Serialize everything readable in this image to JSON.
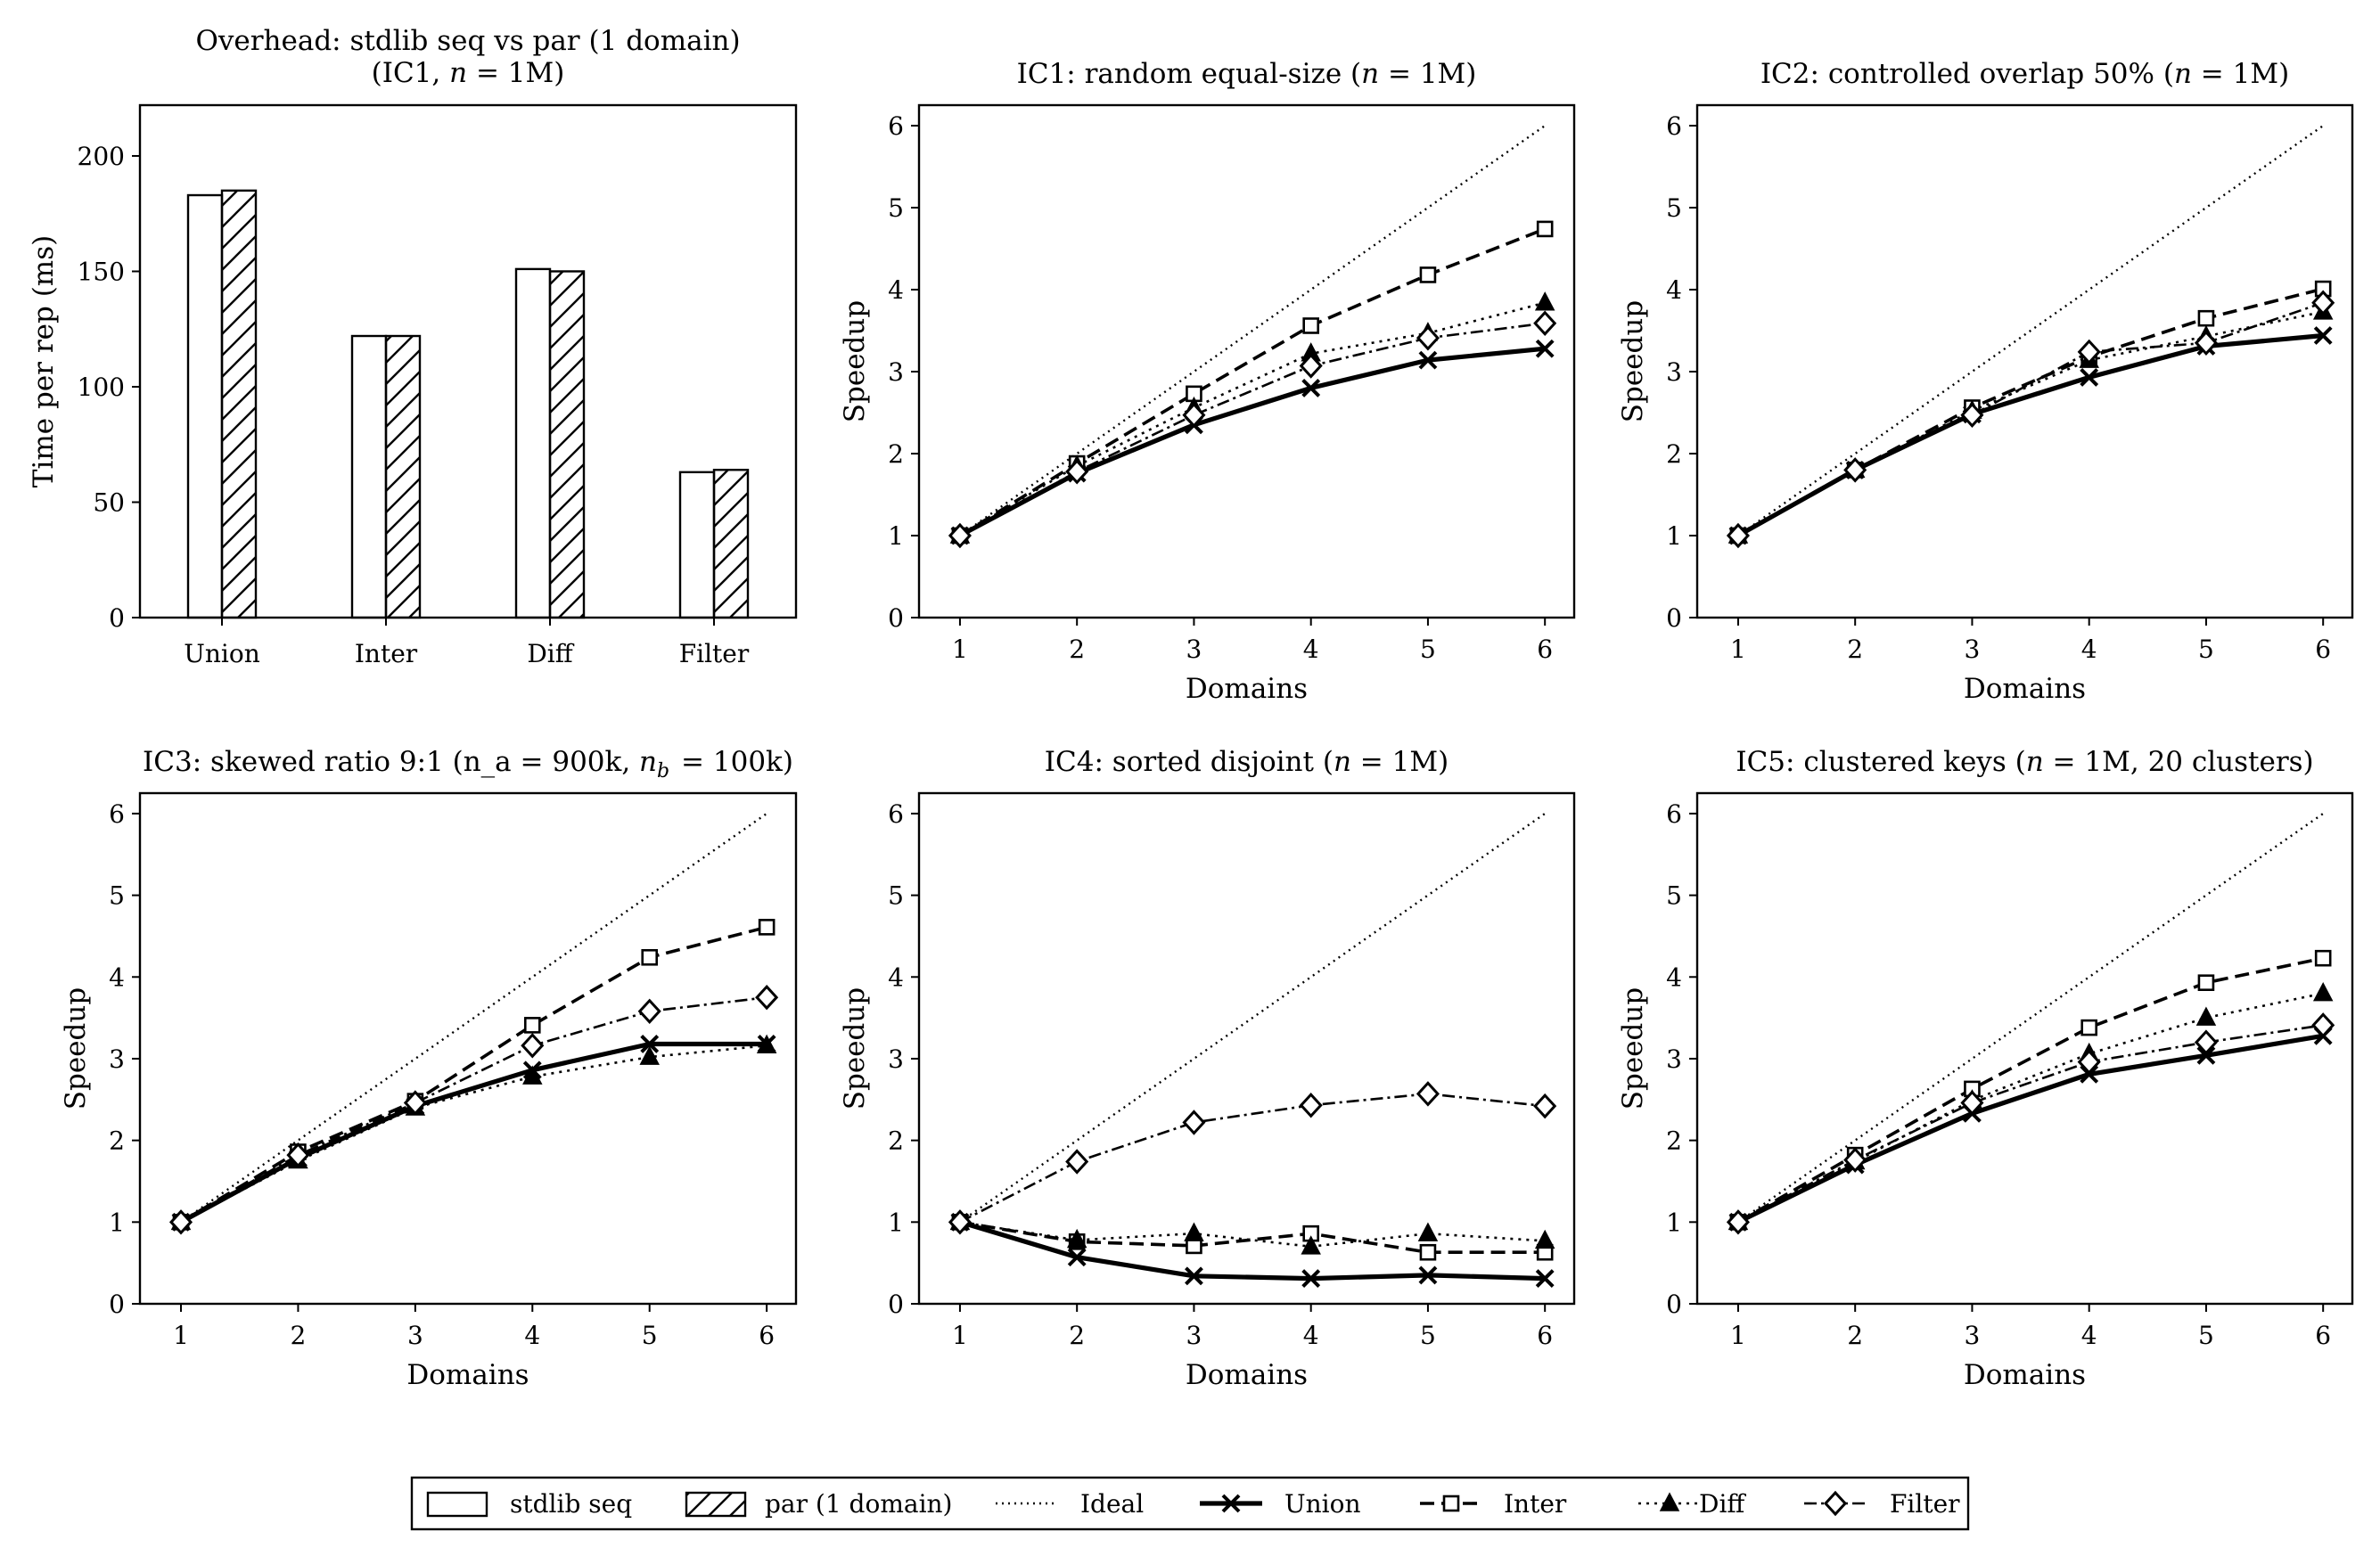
{
  "colors": {
    "line": "#000000",
    "background": "#ffffff"
  },
  "chart_data": [
    {
      "type": "bar",
      "title_lines": [
        "Overhead: stdlib seq vs par (1 domain)",
        "(IC1, n = 1M)"
      ],
      "xlabel": "",
      "ylabel": "Time per rep (ms)",
      "categories": [
        "Union",
        "Inter",
        "Diff",
        "Filter"
      ],
      "ylim": [
        0,
        222
      ],
      "yticks": [
        "0",
        "50",
        "100",
        "150",
        "200"
      ],
      "grid": false,
      "series": [
        {
          "name": "stdlib seq",
          "values": [
            183,
            122,
            151,
            63
          ]
        },
        {
          "name": "par (1 domain)",
          "values": [
            185,
            122,
            150,
            64
          ]
        }
      ]
    },
    {
      "type": "line",
      "title": "IC1: random equal-size (n = 1M)",
      "xlabel": "Domains",
      "ylabel": "Speedup",
      "x": [
        1,
        2,
        3,
        4,
        5,
        6
      ],
      "xticks": [
        "1",
        "2",
        "3",
        "4",
        "5",
        "6"
      ],
      "yticks": [
        "0",
        "1",
        "2",
        "3",
        "4",
        "5",
        "6"
      ],
      "ylim": [
        0,
        6.25
      ],
      "grid": false,
      "series": [
        {
          "name": "Ideal",
          "values": [
            1,
            2,
            3,
            4,
            5,
            6
          ]
        },
        {
          "name": "Union",
          "values": [
            1.0,
            1.76,
            2.35,
            2.8,
            3.14,
            3.28
          ]
        },
        {
          "name": "Inter",
          "values": [
            1.0,
            1.88,
            2.73,
            3.56,
            4.18,
            4.74
          ]
        },
        {
          "name": "Diff",
          "values": [
            1.0,
            1.85,
            2.56,
            3.22,
            3.47,
            3.84
          ]
        },
        {
          "name": "Filter",
          "values": [
            1.0,
            1.78,
            2.47,
            3.07,
            3.41,
            3.59
          ]
        }
      ]
    },
    {
      "type": "line",
      "title": "IC2: controlled overlap 50% (n = 1M)",
      "xlabel": "Domains",
      "ylabel": "Speedup",
      "x": [
        1,
        2,
        3,
        4,
        5,
        6
      ],
      "xticks": [
        "1",
        "2",
        "3",
        "4",
        "5",
        "6"
      ],
      "yticks": [
        "0",
        "1",
        "2",
        "3",
        "4",
        "5",
        "6"
      ],
      "ylim": [
        0,
        6.25
      ],
      "grid": false,
      "series": [
        {
          "name": "Ideal",
          "values": [
            1,
            2,
            3,
            4,
            5,
            6
          ]
        },
        {
          "name": "Union",
          "values": [
            1.0,
            1.8,
            2.48,
            2.93,
            3.31,
            3.44
          ]
        },
        {
          "name": "Inter",
          "values": [
            1.0,
            1.8,
            2.56,
            3.18,
            3.65,
            4.01
          ]
        },
        {
          "name": "Diff",
          "values": [
            1.0,
            1.8,
            2.52,
            3.14,
            3.43,
            3.73
          ]
        },
        {
          "name": "Filter",
          "values": [
            1.0,
            1.8,
            2.47,
            3.24,
            3.35,
            3.84
          ]
        }
      ]
    },
    {
      "type": "line",
      "title": "IC3: skewed ratio 9:1 (n_a = 900k, n_b = 100k)",
      "xlabel": "Domains",
      "ylabel": "Speedup",
      "x": [
        1,
        2,
        3,
        4,
        5,
        6
      ],
      "xticks": [
        "1",
        "2",
        "3",
        "4",
        "5",
        "6"
      ],
      "yticks": [
        "0",
        "1",
        "2",
        "3",
        "4",
        "5",
        "6"
      ],
      "ylim": [
        0,
        6.25
      ],
      "grid": false,
      "series": [
        {
          "name": "Ideal",
          "values": [
            1,
            2,
            3,
            4,
            5,
            6
          ]
        },
        {
          "name": "Union",
          "values": [
            1.0,
            1.78,
            2.42,
            2.86,
            3.18,
            3.18
          ]
        },
        {
          "name": "Inter",
          "values": [
            1.0,
            1.86,
            2.48,
            3.41,
            4.24,
            4.61
          ]
        },
        {
          "name": "Diff",
          "values": [
            1.0,
            1.75,
            2.4,
            2.78,
            3.02,
            3.16
          ]
        },
        {
          "name": "Filter",
          "values": [
            1.0,
            1.82,
            2.46,
            3.16,
            3.58,
            3.75
          ]
        }
      ]
    },
    {
      "type": "line",
      "title": "IC4: sorted disjoint (n = 1M)",
      "xlabel": "Domains",
      "ylabel": "Speedup",
      "x": [
        1,
        2,
        3,
        4,
        5,
        6
      ],
      "xticks": [
        "1",
        "2",
        "3",
        "4",
        "5",
        "6"
      ],
      "yticks": [
        "0",
        "1",
        "2",
        "3",
        "4",
        "5",
        "6"
      ],
      "ylim": [
        0,
        6.25
      ],
      "grid": false,
      "series": [
        {
          "name": "Ideal",
          "values": [
            1,
            2,
            3,
            4,
            5,
            6
          ]
        },
        {
          "name": "Union",
          "values": [
            1.0,
            0.57,
            0.34,
            0.31,
            0.35,
            0.31
          ]
        },
        {
          "name": "Inter",
          "values": [
            1.0,
            0.76,
            0.71,
            0.86,
            0.63,
            0.63
          ]
        },
        {
          "name": "Diff",
          "values": [
            1.0,
            0.78,
            0.86,
            0.7,
            0.86,
            0.77
          ]
        },
        {
          "name": "Filter",
          "values": [
            1.0,
            1.74,
            2.22,
            2.43,
            2.57,
            2.42
          ]
        }
      ]
    },
    {
      "type": "line",
      "title": "IC5: clustered keys (n = 1M, 20 clusters)",
      "xlabel": "Domains",
      "ylabel": "Speedup",
      "x": [
        1,
        2,
        3,
        4,
        5,
        6
      ],
      "xticks": [
        "1",
        "2",
        "3",
        "4",
        "5",
        "6"
      ],
      "yticks": [
        "0",
        "1",
        "2",
        "3",
        "4",
        "5",
        "6"
      ],
      "ylim": [
        0,
        6.25
      ],
      "grid": false,
      "series": [
        {
          "name": "Ideal",
          "values": [
            1,
            2,
            3,
            4,
            5,
            6
          ]
        },
        {
          "name": "Union",
          "values": [
            1.0,
            1.7,
            2.33,
            2.81,
            3.04,
            3.28
          ]
        },
        {
          "name": "Inter",
          "values": [
            1.0,
            1.82,
            2.63,
            3.38,
            3.93,
            4.23
          ]
        },
        {
          "name": "Diff",
          "values": [
            1.0,
            1.74,
            2.49,
            3.06,
            3.5,
            3.8
          ]
        },
        {
          "name": "Filter",
          "values": [
            1.0,
            1.76,
            2.46,
            2.96,
            3.2,
            3.41
          ]
        }
      ]
    }
  ],
  "legend": {
    "placement": "bottom-center",
    "entries": [
      "stdlib seq",
      "par (1 domain)",
      "Ideal",
      "Union",
      "Inter",
      "Diff",
      "Filter"
    ]
  }
}
